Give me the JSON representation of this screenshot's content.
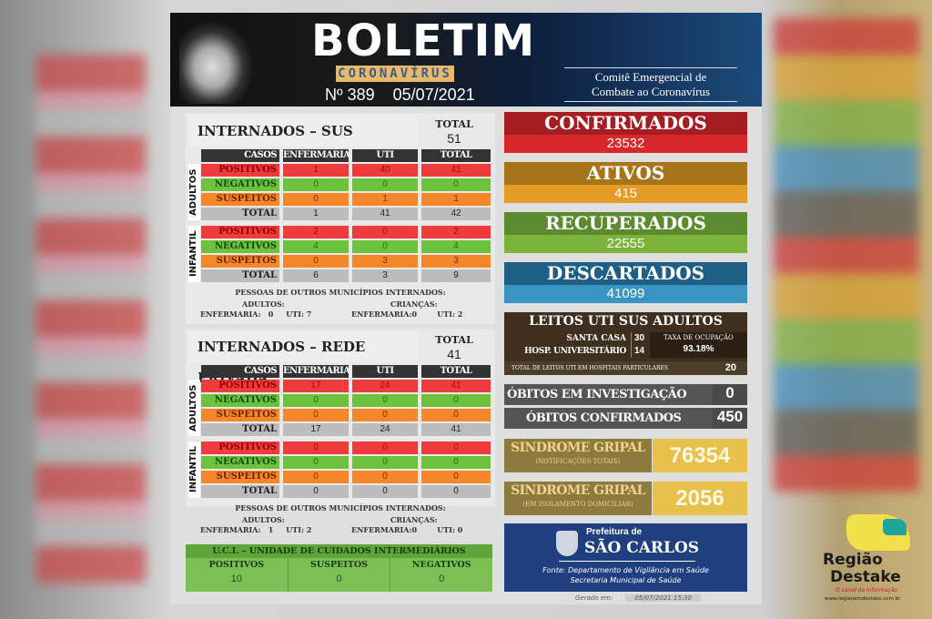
{
  "header": {
    "title": "BOLETIM",
    "subtitle": "CORONAVÍRUS",
    "number": "Nº 389",
    "date": "05/07/2021",
    "committee_line1": "Comitê Emergencial de",
    "committee_line2": "Combate ao Coronavírus"
  },
  "sus": {
    "title": "INTERNADOS – SUS",
    "total_label": "TOTAL",
    "total": "51",
    "headers": [
      "CASOS",
      "ENFERMARIA",
      "UTI",
      "TOTAL"
    ],
    "adultos_label": "ADULTOS",
    "infantil_label": "INFANTIL",
    "adultos": [
      [
        "POSITIVOS",
        "1",
        "40",
        "41"
      ],
      [
        "NEGATIVOS",
        "0",
        "0",
        "0"
      ],
      [
        "SUSPEITOS",
        "0",
        "1",
        "1"
      ],
      [
        "TOTAL",
        "1",
        "41",
        "42"
      ]
    ],
    "infantil": [
      [
        "POSITIVOS",
        "2",
        "0",
        "2"
      ],
      [
        "NEGATIVOS",
        "4",
        "0",
        "4"
      ],
      [
        "SUSPEITOS",
        "0",
        "3",
        "3"
      ],
      [
        "TOTAL",
        "6",
        "3",
        "9"
      ]
    ],
    "outros": {
      "title": "PESSOAS DE OUTROS MUNICÍPIOS INTERNADOS:",
      "adultos": "ADULTOS:",
      "adultos_values": "ENFERMARIA:   0     UTI: 7",
      "criancas": "CRIANÇAS:",
      "criancas_values": "ENFERMARIA:0        UTI: 2"
    }
  },
  "privada": {
    "title": "INTERNADOS – REDE PRIVADA",
    "total_label": "TOTAL",
    "total": "41",
    "headers": [
      "CASOS",
      "ENFERMARIA",
      "UTI",
      "TOTAL"
    ],
    "adultos_label": "ADULTOS",
    "infantil_label": "INFANTIL",
    "adultos": [
      [
        "POSITIVOS",
        "17",
        "24",
        "41"
      ],
      [
        "NEGATIVOS",
        "0",
        "0",
        "0"
      ],
      [
        "SUSPEITOS",
        "0",
        "0",
        "0"
      ],
      [
        "TOTAL",
        "17",
        "24",
        "41"
      ]
    ],
    "infantil": [
      [
        "POSITIVOS",
        "0",
        "0",
        "0"
      ],
      [
        "NEGATIVOS",
        "0",
        "0",
        "0"
      ],
      [
        "SUSPEITOS",
        "0",
        "0",
        "0"
      ],
      [
        "TOTAL",
        "0",
        "0",
        "0"
      ]
    ],
    "outros": {
      "title": "PESSOAS DE OUTROS MUNICÍPIOS INTERNADOS:",
      "adultos": "ADULTOS:",
      "adultos_values": "ENFERMARIA:   1     UTI: 2",
      "criancas": "CRIANÇAS:",
      "criancas_values": "ENFERMARIA:0        UTI: 0"
    }
  },
  "uci": {
    "title": "U.C.I. – UNIDADE DE CUIDADOS INTERMEDIÁRIOS",
    "cols": [
      {
        "label": "POSITIVOS",
        "value": "10"
      },
      {
        "label": "SUSPEITOS",
        "value": "0"
      },
      {
        "label": "NEGATIVOS",
        "value": "0"
      }
    ]
  },
  "stats": [
    {
      "label": "CONFIRMADOS",
      "value": "23532",
      "title_color": "#a51d20",
      "value_color": "#d8262b"
    },
    {
      "label": "ATIVOS",
      "value": "415",
      "title_color": "#a8741a",
      "value_color": "#e59c27"
    },
    {
      "label": "RECUPERADOS",
      "value": "22555",
      "title_color": "#5c8a2e",
      "value_color": "#7bb33c"
    },
    {
      "label": "DESCARTADOS",
      "value": "41099",
      "title_color": "#1f5f86",
      "value_color": "#3b95c4"
    }
  ],
  "leitos": {
    "title": "LEITOS UTI SUS ADULTOS",
    "santa_casa_label": "SANTA CASA",
    "santa_casa": "30",
    "hu_label": "HOSP. UNIVERSITÁRIO",
    "hu": "14",
    "taxa_label": "TAXA DE OCUPAÇÃO",
    "taxa": "93.18%",
    "particulares_label": "TOTAL DE LEITOS UTI EM HOSPITAIS PARTICULARES",
    "particulares": "20"
  },
  "obitos": {
    "investigacao_label": "ÓBITOS EM INVESTIGAÇÃO",
    "investigacao": "0",
    "confirmados_label": "ÓBITOS CONFIRMADOS",
    "confirmados": "450"
  },
  "sindrome": [
    {
      "label": "SINDROME GRIPAL",
      "sub": "(NOTIFICAÇÕES TOTAIS)",
      "value": "76354"
    },
    {
      "label": "SINDROME GRIPAL",
      "sub": "(EM ISOLAMENTO DOMICILIAR)",
      "value": "2056"
    }
  ],
  "prefeitura": {
    "line1": "Prefeitura de",
    "line2": "SÃO CARLOS",
    "fonte1": "Fonte: Departamento de Vigilância em Saúde",
    "fonte2": "Secretaria Municipal de Saúde",
    "gerado_label": "Gerado em:",
    "gerado": "05/07/2021 15:30"
  },
  "watermark": {
    "name1": "Região",
    "name2": "Destake",
    "tagline": "O canal da informação",
    "url": "www.regiaoemdestake.com.br"
  }
}
